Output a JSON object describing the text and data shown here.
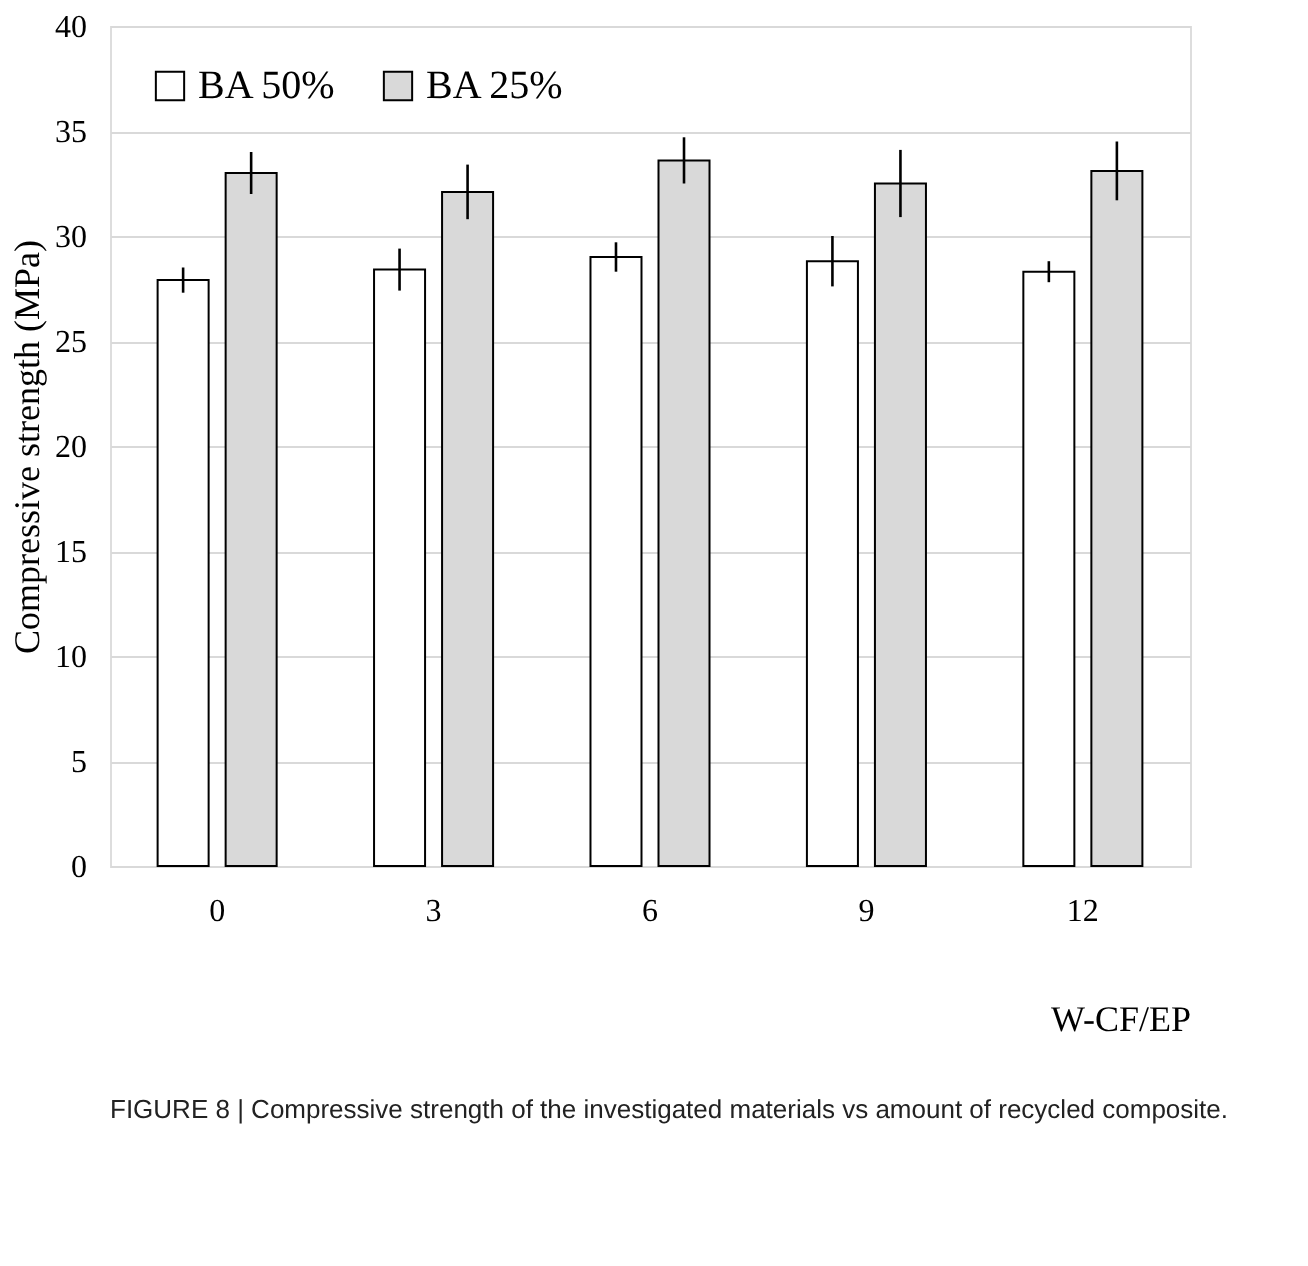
{
  "chart_data": {
    "type": "bar",
    "xlabel": "W-CF/EP",
    "ylabel": "Compressive strength (MPa)",
    "categories": [
      "0",
      "3",
      "6",
      "9",
      "12"
    ],
    "series": [
      {
        "name": "BA 50%",
        "color": "#ffffff",
        "values": [
          27.9,
          28.4,
          29.0,
          28.8,
          28.3
        ],
        "errors": [
          0.6,
          1.0,
          0.7,
          1.2,
          0.5
        ]
      },
      {
        "name": "BA 25%",
        "color": "#d9d9d9",
        "values": [
          33.0,
          32.1,
          33.6,
          32.5,
          33.1
        ],
        "errors": [
          1.0,
          1.3,
          1.1,
          1.6,
          1.4
        ]
      }
    ],
    "ylim": [
      0,
      40
    ],
    "yticks": [
      0,
      5,
      10,
      15,
      20,
      25,
      30,
      35,
      40
    ],
    "grid": "y",
    "legend": "top left",
    "annotations": [
      "FIGURE 8 | Compressive strength of the investigated materials vs amount of recycled composite."
    ]
  }
}
